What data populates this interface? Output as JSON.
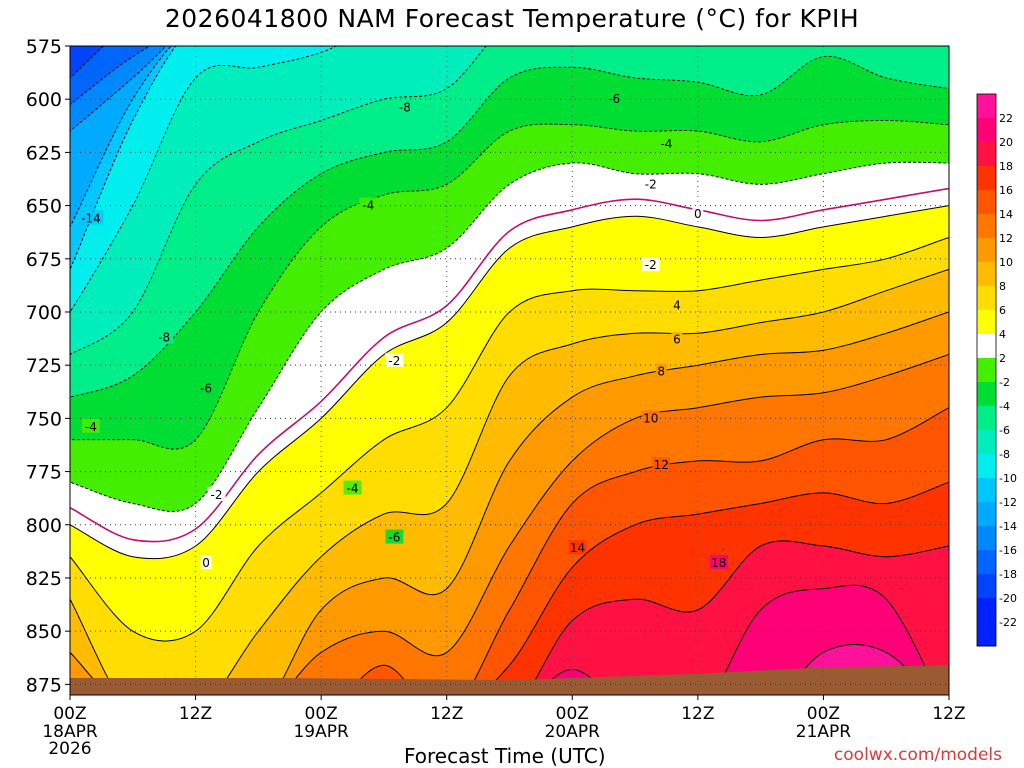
{
  "chart_data": {
    "type": "heatmap",
    "title": "2026041800 NAM Forecast Temperature (°C) for KPIH",
    "xlabel": "Forecast Time (UTC)",
    "ylabel": "",
    "x_ticks": [
      {
        "hour": 0,
        "label": "00Z",
        "sub": [
          "18APR",
          "2026"
        ]
      },
      {
        "hour": 12,
        "label": "12Z",
        "sub": []
      },
      {
        "hour": 24,
        "label": "00Z",
        "sub": [
          "19APR"
        ]
      },
      {
        "hour": 36,
        "label": "12Z",
        "sub": []
      },
      {
        "hour": 48,
        "label": "00Z",
        "sub": [
          "20APR"
        ]
      },
      {
        "hour": 60,
        "label": "12Z",
        "sub": []
      },
      {
        "hour": 72,
        "label": "00Z",
        "sub": [
          "21APR"
        ]
      },
      {
        "hour": 84,
        "label": "12Z",
        "sub": []
      }
    ],
    "xlim": [
      0,
      84
    ],
    "y_ticks": [
      575,
      600,
      625,
      650,
      675,
      700,
      725,
      750,
      775,
      800,
      825,
      850,
      875
    ],
    "ylim": [
      575,
      880
    ],
    "grid": true,
    "colorbar": {
      "labels": [
        22,
        20,
        18,
        16,
        14,
        12,
        10,
        8,
        6,
        4,
        2,
        -2,
        -4,
        -6,
        -8,
        -10,
        -12,
        -14,
        -16,
        -18,
        -20,
        -22
      ],
      "colors": [
        "#0022ff",
        "#0044ff",
        "#0066ff",
        "#0088ff",
        "#00aaff",
        "#00c8ff",
        "#00eeee",
        "#00eebb",
        "#00ee88",
        "#00dd33",
        "#44ee00",
        "#ffffff",
        "#ffff00",
        "#ffdd00",
        "#ffbb00",
        "#ff9900",
        "#ff7700",
        "#ff5500",
        "#ff3300",
        "#ff1144",
        "#ff0077",
        "#ff1199"
      ]
    },
    "columns": [
      {
        "hour": 0,
        "levels": [
          -20,
          -16,
          -14,
          -12,
          -10,
          -8,
          -6,
          -4,
          -2,
          2,
          4,
          6,
          8
        ],
        "pressures": [
          590,
          615,
          660,
          680,
          700,
          720,
          740,
          760,
          780,
          800,
          815,
          835,
          860
        ]
      },
      {
        "hour": 6,
        "levels": [
          -18,
          -12,
          -10,
          -8,
          -6,
          -4,
          -2,
          2,
          4
        ],
        "pressures": [
          580,
          610,
          650,
          700,
          730,
          760,
          790,
          815,
          850
        ]
      },
      {
        "hour": 12,
        "levels": [
          -10,
          -8,
          -6,
          -4,
          -2,
          2,
          4
        ],
        "pressures": [
          590,
          640,
          700,
          760,
          790,
          810,
          850
        ]
      },
      {
        "hour": 18,
        "levels": [
          -10,
          -8,
          -6,
          -4,
          -2,
          2,
          4,
          6
        ],
        "pressures": [
          585,
          620,
          660,
          700,
          745,
          775,
          810,
          850
        ]
      },
      {
        "hour": 24,
        "levels": [
          -10,
          -8,
          -6,
          -4,
          -2,
          2,
          4,
          6,
          8,
          10
        ],
        "pressures": [
          578,
          610,
          635,
          660,
          700,
          750,
          785,
          815,
          840,
          860
        ]
      },
      {
        "hour": 30,
        "levels": [
          -8,
          -6,
          -4,
          -2,
          2,
          4,
          6,
          8,
          10,
          12
        ],
        "pressures": [
          600,
          625,
          645,
          680,
          720,
          760,
          795,
          825,
          850,
          866
        ]
      },
      {
        "hour": 36,
        "levels": [
          -8,
          -6,
          -4,
          -2,
          2,
          4,
          6,
          8,
          10
        ],
        "pressures": [
          595,
          620,
          640,
          670,
          705,
          745,
          790,
          830,
          860
        ]
      },
      {
        "hour": 42,
        "levels": [
          -6,
          -4,
          -2,
          2,
          4,
          6,
          8,
          10,
          12,
          14
        ],
        "pressures": [
          590,
          615,
          640,
          670,
          700,
          730,
          770,
          810,
          840,
          866
        ]
      },
      {
        "hour": 48,
        "levels": [
          -6,
          -4,
          -2,
          2,
          4,
          6,
          8,
          10,
          12,
          14,
          16,
          18
        ],
        "pressures": [
          585,
          612,
          630,
          660,
          690,
          715,
          740,
          770,
          790,
          820,
          845,
          868
        ]
      },
      {
        "hour": 54,
        "levels": [
          -6,
          -4,
          -2,
          2,
          4,
          6,
          8,
          10,
          12,
          14,
          16
        ],
        "pressures": [
          590,
          615,
          635,
          655,
          690,
          710,
          730,
          750,
          775,
          800,
          835
        ]
      },
      {
        "hour": 60,
        "levels": [
          -6,
          -4,
          -2,
          2,
          4,
          6,
          8,
          10,
          12,
          14,
          16
        ],
        "pressures": [
          592,
          615,
          635,
          660,
          690,
          710,
          725,
          745,
          770,
          795,
          840
        ]
      },
      {
        "hour": 66,
        "levels": [
          -6,
          -4,
          -2,
          2,
          4,
          6,
          8,
          10,
          12,
          14,
          16,
          18
        ],
        "pressures": [
          598,
          620,
          640,
          665,
          685,
          705,
          720,
          740,
          770,
          790,
          810,
          840
        ]
      },
      {
        "hour": 72,
        "levels": [
          -6,
          -4,
          -2,
          2,
          4,
          6,
          8,
          10,
          12,
          14,
          16,
          18,
          20
        ],
        "pressures": [
          580,
          612,
          635,
          660,
          680,
          700,
          718,
          738,
          760,
          785,
          810,
          830,
          860
        ]
      },
      {
        "hour": 78,
        "levels": [
          -6,
          -4,
          -2,
          2,
          4,
          6,
          8,
          10,
          12,
          14,
          16,
          18,
          20
        ],
        "pressures": [
          590,
          610,
          630,
          655,
          675,
          690,
          710,
          730,
          760,
          790,
          815,
          835,
          860
        ]
      },
      {
        "hour": 84,
        "levels": [
          -6,
          -4,
          -2,
          2,
          4,
          6,
          8,
          10,
          12,
          14,
          16
        ],
        "pressures": [
          595,
          612,
          630,
          650,
          665,
          680,
          700,
          720,
          745,
          780,
          810
        ]
      }
    ],
    "contour_labels": [
      {
        "text": "-14",
        "hour": 2.0,
        "pressure": 656
      },
      {
        "text": "-8",
        "hour": 9.0,
        "pressure": 712
      },
      {
        "text": "-6",
        "hour": 13.0,
        "pressure": 736
      },
      {
        "text": "-4",
        "hour": 2.0,
        "pressure": 754
      },
      {
        "text": "-2",
        "hour": 14.0,
        "pressure": 786
      },
      {
        "text": "0",
        "hour": 13.0,
        "pressure": 818
      },
      {
        "text": "-4",
        "hour": 28.5,
        "pressure": 650
      },
      {
        "text": "-8",
        "hour": 32.0,
        "pressure": 604
      },
      {
        "text": "-2",
        "hour": 31.0,
        "pressure": 723
      },
      {
        "text": "-4",
        "hour": 27.0,
        "pressure": 783
      },
      {
        "text": "-6",
        "hour": 31.0,
        "pressure": 806
      },
      {
        "text": "-6",
        "hour": 52.0,
        "pressure": 600
      },
      {
        "text": "-4",
        "hour": 57.0,
        "pressure": 621
      },
      {
        "text": "-2",
        "hour": 55.5,
        "pressure": 640
      },
      {
        "text": "0",
        "hour": 60.0,
        "pressure": 654
      },
      {
        "text": "-2",
        "hour": 55.5,
        "pressure": 678
      },
      {
        "text": "4",
        "hour": 58.0,
        "pressure": 697
      },
      {
        "text": "6",
        "hour": 58.0,
        "pressure": 713
      },
      {
        "text": "8",
        "hour": 56.5,
        "pressure": 728
      },
      {
        "text": "10",
        "hour": 55.5,
        "pressure": 750
      },
      {
        "text": "12",
        "hour": 56.5,
        "pressure": 772
      },
      {
        "text": "14",
        "hour": 48.5,
        "pressure": 811
      },
      {
        "text": "18",
        "hour": 62.0,
        "pressure": 818
      }
    ],
    "terrain_color": "#9a5a32"
  },
  "credit": "coolwx.com/models"
}
